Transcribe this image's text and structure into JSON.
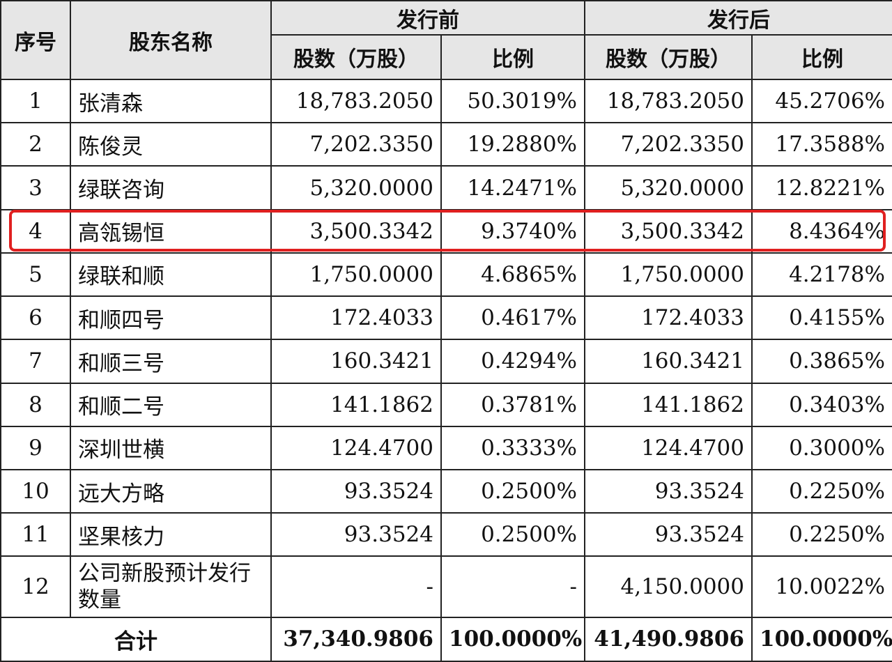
{
  "header": {
    "seq": "序号",
    "holder": "股东名称",
    "before": "发行前",
    "after": "发行后",
    "shares": "股数（万股）",
    "ratio": "比例"
  },
  "rows": [
    {
      "no": "1",
      "name": "张清森",
      "before_shares": "18,783.2050",
      "before_ratio": "50.3019%",
      "after_shares": "18,783.2050",
      "after_ratio": "45.2706%"
    },
    {
      "no": "2",
      "name": "陈俊灵",
      "before_shares": "7,202.3350",
      "before_ratio": "19.2880%",
      "after_shares": "7,202.3350",
      "after_ratio": "17.3588%"
    },
    {
      "no": "3",
      "name": "绿联咨询",
      "before_shares": "5,320.0000",
      "before_ratio": "14.2471%",
      "after_shares": "5,320.0000",
      "after_ratio": "12.8221%"
    },
    {
      "no": "4",
      "name": "高瓴锡恒",
      "before_shares": "3,500.3342",
      "before_ratio": "9.3740%",
      "after_shares": "3,500.3342",
      "after_ratio": "8.4364%"
    },
    {
      "no": "5",
      "name": "绿联和顺",
      "before_shares": "1,750.0000",
      "before_ratio": "4.6865%",
      "after_shares": "1,750.0000",
      "after_ratio": "4.2178%"
    },
    {
      "no": "6",
      "name": "和顺四号",
      "before_shares": "172.4033",
      "before_ratio": "0.4617%",
      "after_shares": "172.4033",
      "after_ratio": "0.4155%"
    },
    {
      "no": "7",
      "name": "和顺三号",
      "before_shares": "160.3421",
      "before_ratio": "0.4294%",
      "after_shares": "160.3421",
      "after_ratio": "0.3865%"
    },
    {
      "no": "8",
      "name": "和顺二号",
      "before_shares": "141.1862",
      "before_ratio": "0.3781%",
      "after_shares": "141.1862",
      "after_ratio": "0.3403%"
    },
    {
      "no": "9",
      "name": "深圳世横",
      "before_shares": "124.4700",
      "before_ratio": "0.3333%",
      "after_shares": "124.4700",
      "after_ratio": "0.3000%"
    },
    {
      "no": "10",
      "name": "远大方略",
      "before_shares": "93.3524",
      "before_ratio": "0.2500%",
      "after_shares": "93.3524",
      "after_ratio": "0.2250%"
    },
    {
      "no": "11",
      "name": "坚果核力",
      "before_shares": "93.3524",
      "before_ratio": "0.2500%",
      "after_shares": "93.3524",
      "after_ratio": "0.2250%"
    },
    {
      "no": "12",
      "name": "公司新股预计发行数量",
      "before_shares": "-",
      "before_ratio": "-",
      "after_shares": "4,150.0000",
      "after_ratio": "10.0022%"
    }
  ],
  "total": {
    "label": "合计",
    "before_shares": "37,340.9806",
    "before_ratio": "100.0000%",
    "after_shares": "41,490.9806",
    "after_ratio": "100.0000%"
  },
  "highlight": {
    "row": "4",
    "color": "#e02020"
  }
}
